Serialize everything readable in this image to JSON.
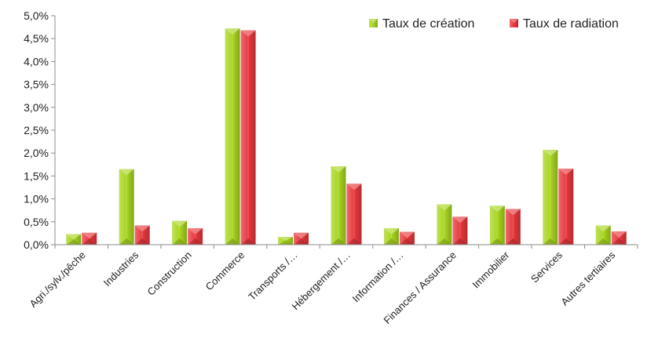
{
  "chart_data": {
    "type": "bar",
    "categories": [
      "Agri./sylv./pêche",
      "Industries",
      "Construction",
      "Commerce",
      "Transports /…",
      "Hébergement /…",
      "Information /…",
      "Finances / Assurance",
      "Immobilier",
      "Services",
      "Autres tertiaires"
    ],
    "series": [
      {
        "name": "Taux de création",
        "values": [
          0.23,
          1.65,
          0.52,
          4.72,
          0.17,
          1.71,
          0.36,
          0.88,
          0.85,
          2.07,
          0.42
        ],
        "color": "#a8d620"
      },
      {
        "name": "Taux de radiation",
        "values": [
          0.26,
          0.42,
          0.36,
          4.68,
          0.26,
          1.33,
          0.28,
          0.61,
          0.78,
          1.66,
          0.29
        ],
        "color": "#e8383d"
      }
    ],
    "ylim": [
      0,
      5.0
    ],
    "yticks": [
      "0,0%",
      "0,5%",
      "1,0%",
      "1,5%",
      "2,0%",
      "2,5%",
      "3,0%",
      "3,5%",
      "4,0%",
      "4,5%",
      "5,0%"
    ],
    "grid": false,
    "legend_position": "top-right"
  }
}
